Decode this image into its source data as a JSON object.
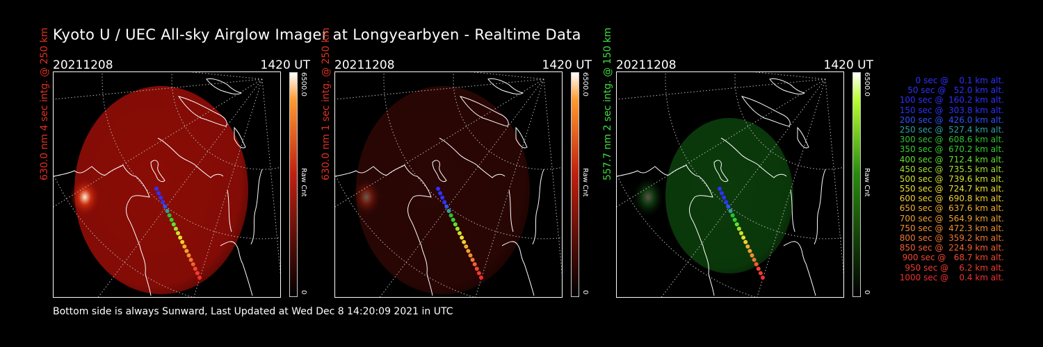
{
  "title": "Kyoto U / UEC All-sky Airglow Imager at Longyearbyen - Realtime Data",
  "panels": [
    {
      "date": "20211208",
      "time": "1420 UT",
      "ylabel": "630.0 nm 4 sec intg. @ 250 km",
      "label_color": "#e03020",
      "cb_max": "6500.0",
      "cb_unit": "Raw Cnt",
      "cb_min": "0",
      "glow": "#8a0c06",
      "cb_top": "#ff9a30",
      "hot": true
    },
    {
      "date": "20211208",
      "time": "1420 UT",
      "ylabel": "630.0 nm 1 sec intg. @ 250 km",
      "label_color": "#e03020",
      "cb_max": "6500.0",
      "cb_unit": "Raw Cnt",
      "cb_min": "0",
      "glow": "#2a0604",
      "cb_top": "#ff9a30",
      "hot": false
    },
    {
      "date": "20211208",
      "time": "1420 UT",
      "ylabel": "557.7 nm 2 sec intg. @ 150 km",
      "label_color": "#3fe03f",
      "cb_max": "6500.0",
      "cb_unit": "Raw Cnt",
      "cb_min": "0",
      "glow": "#0b3a0b",
      "cb_top": "#b8ff30",
      "hot": false
    }
  ],
  "footer": "Bottom side is always Sunward, Last Updated at Wed Dec  8 14:20:09 2021 in UTC",
  "legend": [
    {
      "text": "   0 sec @    0.1 km alt.",
      "color": "#3030ff"
    },
    {
      "text": "  50 sec @   52.0 km alt.",
      "color": "#3030ff"
    },
    {
      "text": " 100 sec @  160.2 km alt.",
      "color": "#3030ff"
    },
    {
      "text": " 150 sec @  303.8 km alt.",
      "color": "#3030ff"
    },
    {
      "text": " 200 sec @  426.0 km alt.",
      "color": "#3050ff"
    },
    {
      "text": " 250 sec @  527.4 km alt.",
      "color": "#30a0a0"
    },
    {
      "text": " 300 sec @  608.6 km alt.",
      "color": "#30c030"
    },
    {
      "text": " 350 sec @  670.2 km alt.",
      "color": "#30d030"
    },
    {
      "text": " 400 sec @  712.4 km alt.",
      "color": "#60e030"
    },
    {
      "text": " 450 sec @  735.5 km alt.",
      "color": "#a0e030"
    },
    {
      "text": " 500 sec @  739.6 km alt.",
      "color": "#d0e030"
    },
    {
      "text": " 550 sec @  724.7 km alt.",
      "color": "#e8e030"
    },
    {
      "text": " 600 sec @  690.8 km alt.",
      "color": "#f0d030"
    },
    {
      "text": " 650 sec @  637.6 km alt.",
      "color": "#f0b030"
    },
    {
      "text": " 700 sec @  564.9 km alt.",
      "color": "#f0a030"
    },
    {
      "text": " 750 sec @  472.3 km alt.",
      "color": "#f09030"
    },
    {
      "text": " 800 sec @  359.2 km alt.",
      "color": "#f07830"
    },
    {
      "text": " 850 sec @  224.9 km alt.",
      "color": "#f06030"
    },
    {
      "text": " 900 sec @   68.7 km alt.",
      "color": "#f04830"
    },
    {
      "text": " 950 sec @    6.2 km alt.",
      "color": "#f03c30"
    },
    {
      "text": "1000 sec @    0.4 km alt.",
      "color": "#f03030"
    }
  ]
}
